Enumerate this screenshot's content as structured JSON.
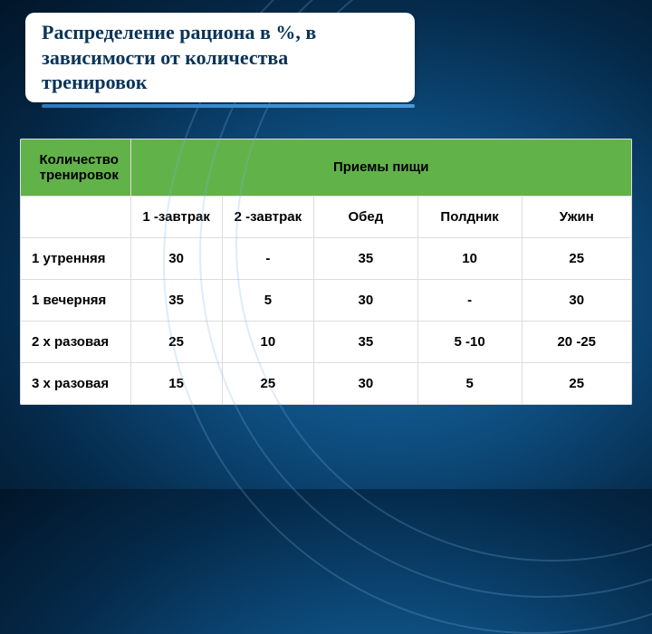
{
  "title": "Распределение рациона в %, в зависимости от количества тренировок",
  "table": {
    "header_rowlabel": "Количество тренировок",
    "header_mealsgroup": "Приемы пищи",
    "columns": [
      "1 -завтрак",
      "2 -завтрак",
      "Обед",
      "Полдник",
      "Ужин"
    ],
    "rows": [
      {
        "label": "1 утренняя",
        "values": [
          "30",
          "-",
          "35",
          "10",
          "25"
        ]
      },
      {
        "label": "1 вечерняя",
        "values": [
          "35",
          "5",
          "30",
          "-",
          "30"
        ]
      },
      {
        "label": "2 х разовая",
        "values": [
          "25",
          "10",
          "35",
          "5 -10",
          "20 -25"
        ]
      },
      {
        "label": "3 х разовая",
        "values": [
          "15",
          "25",
          "30",
          "5",
          "25"
        ]
      }
    ]
  },
  "colors": {
    "title_text": "#0a3458",
    "header_bg": "#62b24a",
    "table_bg": "#ffffff",
    "border": "#dcdcdc",
    "slide_bg_inner": "#1a6ba8",
    "slide_bg_outer": "#021528"
  }
}
